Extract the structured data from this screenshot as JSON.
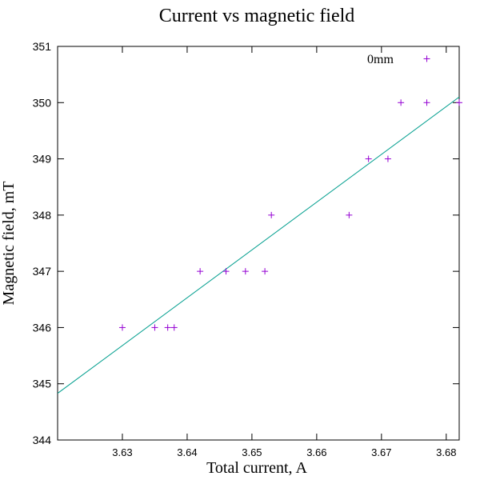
{
  "chart_data": {
    "type": "scatter",
    "title": "Current vs magnetic field",
    "xlabel": "Total current, A",
    "ylabel": "Magnetic field, mT",
    "xlim": [
      3.62,
      3.682
    ],
    "ylim": [
      344,
      351
    ],
    "x_ticks": [
      3.63,
      3.64,
      3.65,
      3.66,
      3.67,
      3.68
    ],
    "x_tick_labels": [
      "3.63",
      "3.64",
      "3.65",
      "3.66",
      "3.67",
      "3.68"
    ],
    "y_ticks": [
      344,
      345,
      346,
      347,
      348,
      349,
      350,
      351
    ],
    "y_tick_labels": [
      "344",
      "345",
      "346",
      "347",
      "348",
      "349",
      "350",
      "351"
    ],
    "grid": false,
    "legend_position": "top-right",
    "series": [
      {
        "name": "0mm",
        "marker": "plus",
        "color": "#9400d3",
        "points": [
          {
            "x": 3.63,
            "y": 346
          },
          {
            "x": 3.635,
            "y": 346
          },
          {
            "x": 3.637,
            "y": 346
          },
          {
            "x": 3.638,
            "y": 346
          },
          {
            "x": 3.642,
            "y": 347
          },
          {
            "x": 3.646,
            "y": 347
          },
          {
            "x": 3.649,
            "y": 347
          },
          {
            "x": 3.652,
            "y": 347
          },
          {
            "x": 3.653,
            "y": 348
          },
          {
            "x": 3.665,
            "y": 348
          },
          {
            "x": 3.668,
            "y": 349
          },
          {
            "x": 3.671,
            "y": 349
          },
          {
            "x": 3.673,
            "y": 350
          },
          {
            "x": 3.677,
            "y": 350
          },
          {
            "x": 3.682,
            "y": 350
          },
          {
            "x": 3.677,
            "y": 350.78
          }
        ]
      },
      {
        "type": "line",
        "color": "#009e8e",
        "x": [
          3.62,
          3.682
        ],
        "y": [
          344.83,
          350.1
        ]
      }
    ]
  }
}
